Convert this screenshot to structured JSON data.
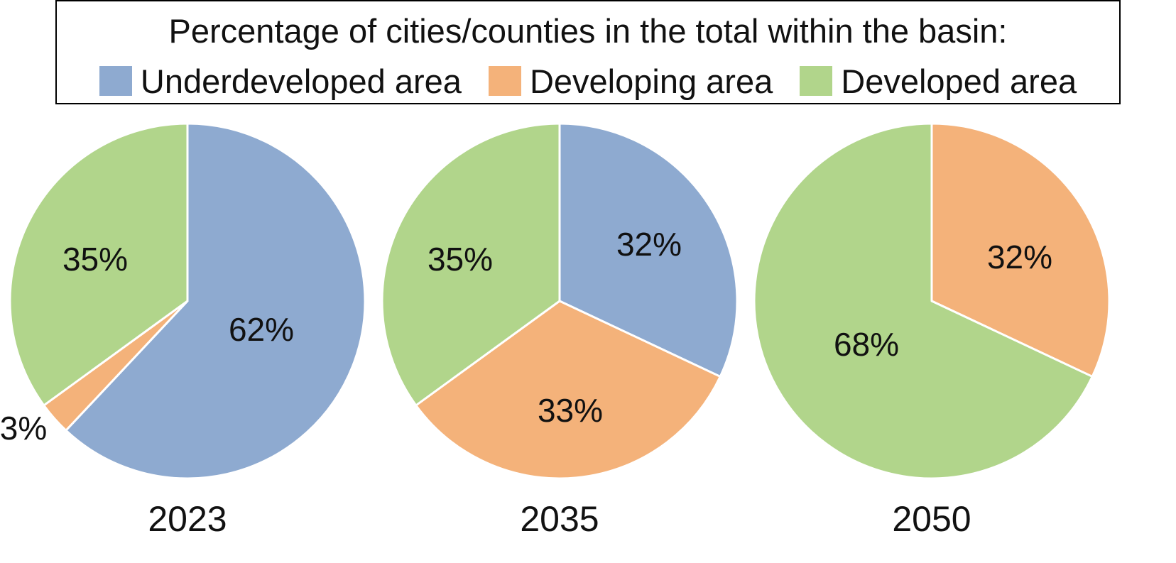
{
  "legend": {
    "title": "Percentage of cities/counties in the total within the basin:",
    "entries": [
      {
        "label": "Underdeveloped area",
        "color": "#8eaad0"
      },
      {
        "label": "Developing area",
        "color": "#f4b27a"
      },
      {
        "label": "Developed area",
        "color": "#b1d58b"
      }
    ]
  },
  "chart_data": [
    {
      "type": "pie",
      "title": "2023",
      "categories": [
        "Underdeveloped area",
        "Developing area",
        "Developed area"
      ],
      "values": [
        62,
        3,
        35
      ],
      "labels": [
        "62%",
        "3%",
        "35%"
      ],
      "colors": [
        "#8eaad0",
        "#f4b27a",
        "#b1d58b"
      ]
    },
    {
      "type": "pie",
      "title": "2035",
      "categories": [
        "Underdeveloped area",
        "Developing area",
        "Developed area"
      ],
      "values": [
        32,
        33,
        35
      ],
      "labels": [
        "32%",
        "33%",
        "35%"
      ],
      "colors": [
        "#8eaad0",
        "#f4b27a",
        "#b1d58b"
      ]
    },
    {
      "type": "pie",
      "title": "2050",
      "categories": [
        "Developing area",
        "Developed area"
      ],
      "values": [
        32,
        68
      ],
      "labels": [
        "32%",
        "68%"
      ],
      "colors": [
        "#f4b27a",
        "#b1d58b"
      ]
    }
  ]
}
